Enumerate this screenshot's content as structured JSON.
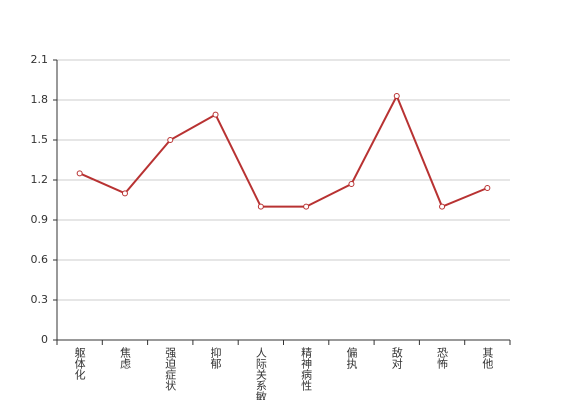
{
  "chart_data": {
    "type": "line",
    "categories": [
      "躯体化",
      "焦虑",
      "强迫症状",
      "抑郁",
      "人际关系敏感",
      "精神病性",
      "偏执",
      "敌对",
      "恐怖",
      "其他"
    ],
    "values": [
      1.25,
      1.1,
      1.5,
      1.69,
      1.0,
      1.0,
      1.17,
      1.83,
      1.0,
      1.14
    ],
    "color": "#b83232",
    "ylim": [
      0,
      2.1
    ],
    "yticks": [
      0,
      0.3,
      0.6,
      0.9,
      1.2,
      1.5,
      1.8,
      2.1
    ],
    "grid": true
  }
}
